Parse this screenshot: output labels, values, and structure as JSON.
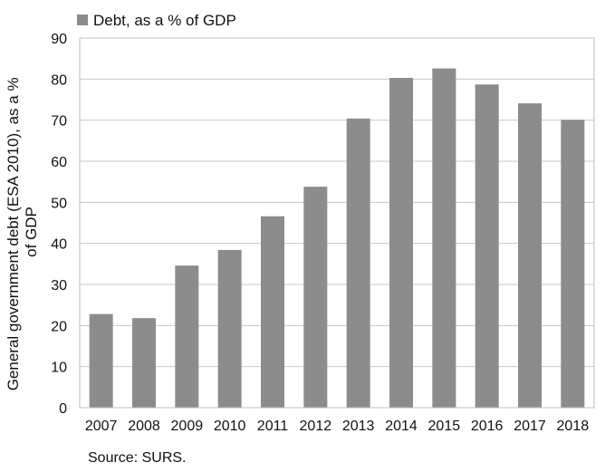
{
  "chart_data": {
    "type": "bar",
    "categories": [
      "2007",
      "2008",
      "2009",
      "2010",
      "2011",
      "2012",
      "2013",
      "2014",
      "2015",
      "2016",
      "2017",
      "2018"
    ],
    "series": [
      {
        "name": "Debt, as a % of GDP",
        "values": [
          22.8,
          21.8,
          34.6,
          38.4,
          46.6,
          53.8,
          70.4,
          80.3,
          82.6,
          78.7,
          74.1,
          70.1
        ],
        "color": "#8c8c8c"
      }
    ],
    "ylabel": "General government debt (ESA 2010), as a % of GDP",
    "ylabel_lines": [
      "General government debt (ESA 2010), as a %",
      "of GDP"
    ],
    "ylim": [
      0,
      90
    ],
    "yticks": [
      0,
      10,
      20,
      30,
      40,
      50,
      60,
      70,
      80,
      90
    ],
    "grid": true,
    "legend_position": "top-left",
    "source": "Source: SURS."
  }
}
